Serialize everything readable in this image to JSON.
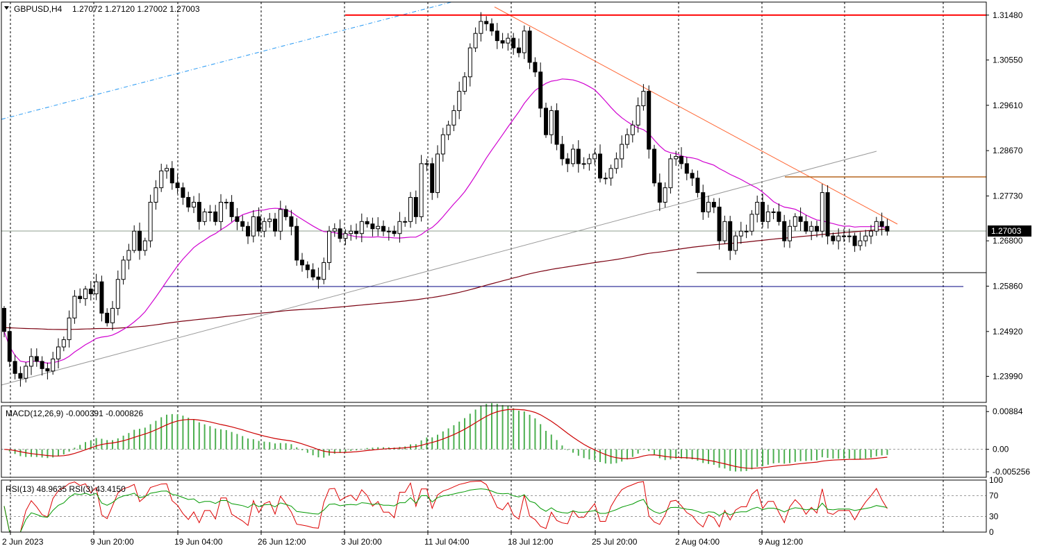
{
  "header": {
    "symbol_label": "GBPUSD,H4",
    "ohlc_label": "1.27072 1.27120 1.27002 1.27003"
  },
  "colors": {
    "bull_body": "#ffffff",
    "bear_body": "#000000",
    "ma_short": "#d000d0",
    "ma_long": "#7a0010",
    "macd_hist": "#4caf50",
    "macd_signal": "#cc0000",
    "rsi_13": "#009900",
    "rsi_3": "#dd0000",
    "resistance": "#ff0000",
    "support": "#000080",
    "downtrend": "#ff6633",
    "uptrend": "#999999",
    "channel": "#2196f3",
    "horizontal_mid": "#b5651d"
  },
  "chart_data": [
    {
      "type": "candlestick",
      "name": "price",
      "symbol": "GBPUSD",
      "timeframe": "H4",
      "ylim": [
        1.2345,
        1.3175
      ],
      "y_ticks": [
        1.3148,
        1.3055,
        1.2961,
        1.2867,
        1.2773,
        1.268,
        1.2586,
        1.2492,
        1.2399
      ],
      "y_tick_labels": [
        "1.31480",
        "1.30550",
        "1.29610",
        "1.28670",
        "1.27730",
        "1.26800",
        "1.25860",
        "1.24920",
        "1.23990"
      ],
      "current_price_label": "1.27003",
      "current_price": 1.27003,
      "x_labels": [
        "2 Jun 2023",
        "9 Jun 20:00",
        "19 Jun 04:00",
        "26 Jun 12:00",
        "3 Jul 20:00",
        "11 Jul 04:00",
        "18 Jul 12:00",
        "25 Jul 20:00",
        "2 Aug 04:00",
        "9 Aug 12:00"
      ],
      "closes": [
        1.2492,
        1.243,
        1.2405,
        1.2395,
        1.242,
        1.244,
        1.243,
        1.2415,
        1.241,
        1.2435,
        1.246,
        1.2475,
        1.252,
        1.2565,
        1.256,
        1.258,
        1.257,
        1.2595,
        1.253,
        1.251,
        1.254,
        1.26,
        1.264,
        1.266,
        1.27,
        1.266,
        1.268,
        1.276,
        1.279,
        1.2825,
        1.283,
        1.28,
        1.279,
        1.277,
        1.275,
        1.276,
        1.272,
        1.274,
        1.274,
        1.272,
        1.276,
        1.276,
        1.273,
        1.272,
        1.271,
        1.269,
        1.273,
        1.27,
        1.272,
        1.2725,
        1.27,
        1.2745,
        1.273,
        1.271,
        1.264,
        1.263,
        1.262,
        1.2605,
        1.26,
        1.2635,
        1.27,
        1.2705,
        1.2685,
        1.2695,
        1.27,
        1.2695,
        1.272,
        1.2715,
        1.2705,
        1.271,
        1.27,
        1.27,
        1.2695,
        1.272,
        1.272,
        1.277,
        1.273,
        1.284,
        1.284,
        1.278,
        1.286,
        1.29,
        1.292,
        1.295,
        1.299,
        1.302,
        1.308,
        1.311,
        1.3135,
        1.313,
        1.3115,
        1.3095,
        1.309,
        1.31,
        1.308,
        1.307,
        1.3115,
        1.305,
        1.303,
        1.2955,
        1.29,
        1.295,
        1.288,
        1.285,
        1.284,
        1.287,
        1.284,
        1.284,
        1.285,
        1.286,
        1.281,
        1.281,
        1.283,
        1.285,
        1.288,
        1.29,
        1.292,
        1.296,
        1.299,
        1.287,
        1.28,
        1.276,
        1.279,
        1.285,
        1.2855,
        1.284,
        1.282,
        1.281,
        1.278,
        1.274,
        1.276,
        1.275,
        1.268,
        1.272,
        1.266,
        1.269,
        1.27,
        1.27,
        1.2735,
        1.276,
        1.272,
        1.274,
        1.274,
        1.272,
        1.268,
        1.271,
        1.273,
        1.272,
        1.27,
        1.271,
        1.27,
        1.278,
        1.269,
        1.268,
        1.269,
        1.269,
        1.269,
        1.267,
        1.268,
        1.269,
        1.27,
        1.272,
        1.271,
        1.27
      ]
    },
    {
      "type": "histogram",
      "name": "MACD",
      "label": "MACD(12,26,9) -0.000391 -0.000826",
      "ylim": [
        -0.00655,
        0.01018
      ],
      "y_ticks": [
        0.00884,
        0.0,
        -0.005256
      ],
      "y_tick_labels": [
        "0.00884",
        "0.00",
        "-0.005256"
      ]
    },
    {
      "type": "line",
      "name": "RSI",
      "label": "RSI(13) 48.9635  RSI(3) 43.4150",
      "ylim": [
        0,
        100
      ],
      "levels": [
        70,
        30
      ],
      "y_tick_labels": [
        "100",
        "70",
        "30",
        "0"
      ]
    }
  ]
}
